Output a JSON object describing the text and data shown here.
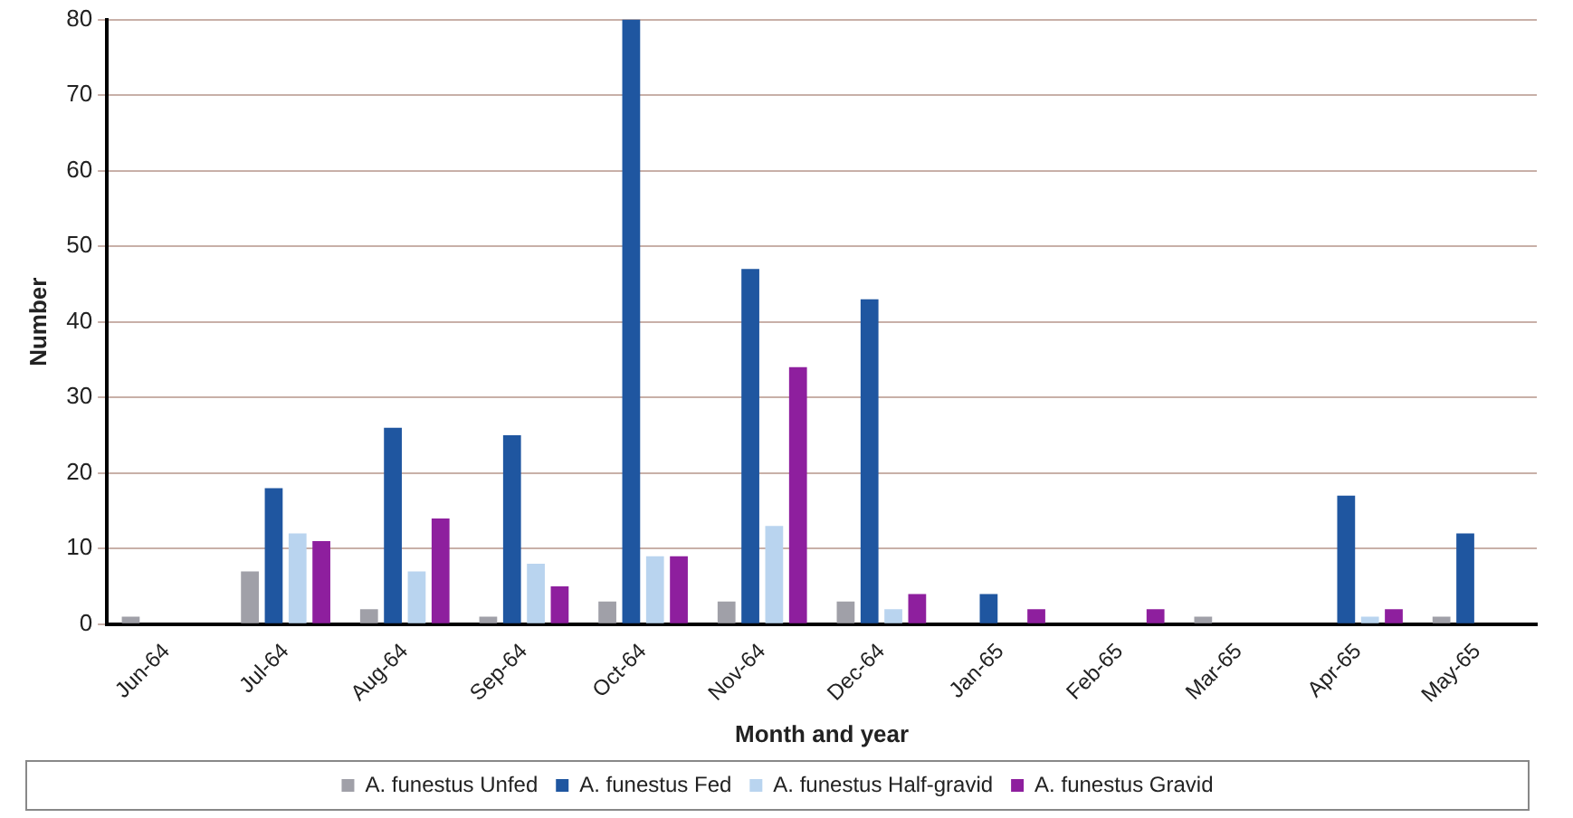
{
  "chart_data": {
    "type": "bar",
    "xlabel": "Month and year",
    "ylabel": "Number",
    "categories": [
      "Jun-64",
      "Jul-64",
      "Aug-64",
      "Sep-64",
      "Oct-64",
      "Nov-64",
      "Dec-64",
      "Jan-65",
      "Feb-65",
      "Mar-65",
      "Apr-65",
      "May-65"
    ],
    "series": [
      {
        "name": "A. funestus Unfed",
        "color": "#a0a0a8",
        "values": [
          1,
          7,
          2,
          1,
          3,
          3,
          3,
          0,
          0,
          1,
          0,
          1
        ]
      },
      {
        "name": "A. funestus Fed",
        "color": "#1f56a0",
        "values": [
          0,
          18,
          26,
          25,
          80,
          47,
          43,
          4,
          0,
          0,
          17,
          12
        ]
      },
      {
        "name": "A. funestus Half-gravid",
        "color": "#b9d4ef",
        "values": [
          0,
          12,
          7,
          8,
          9,
          13,
          2,
          0,
          0,
          0,
          1,
          0
        ]
      },
      {
        "name": "A. funestus Gravid",
        "color": "#8e1f9e",
        "values": [
          0,
          11,
          14,
          5,
          9,
          34,
          4,
          2,
          2,
          0,
          2,
          0
        ]
      }
    ],
    "ylim": [
      0,
      80
    ],
    "yticks": [
      0,
      10,
      20,
      30,
      40,
      50,
      60,
      70,
      80
    ],
    "grid": "y",
    "legend": "bottom"
  }
}
